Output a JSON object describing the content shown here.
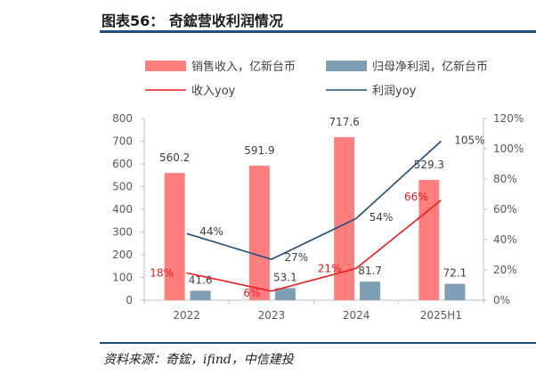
{
  "header": {
    "title": "图表56：  奇鋐营收利润情况"
  },
  "footer": {
    "source": "资料来源：奇鋐，ifind，中信建投"
  },
  "colors": {
    "revenue_bar": "#ff7f7f",
    "profit_bar": "#7f9fb5",
    "revenue_yoy": "#e81c1c",
    "profit_yoy": "#1f4e79",
    "rule": "#1f4e79"
  },
  "chart_data": {
    "type": "bar",
    "categories": [
      "2022",
      "2023",
      "2024",
      "2025H1"
    ],
    "series": [
      {
        "name": "销售收入，亿新台币",
        "kind": "bar",
        "axis": "left",
        "values": [
          560.2,
          591.9,
          717.6,
          529.3
        ],
        "labels": [
          "560.2",
          "591.9",
          "717.6",
          "529.3"
        ]
      },
      {
        "name": "归母净利润，亿新台币",
        "kind": "bar",
        "axis": "left",
        "values": [
          41.6,
          53.1,
          81.7,
          72.1
        ],
        "labels": [
          "41.6",
          "53.1",
          "81.7",
          "72.1"
        ]
      },
      {
        "name": "收入yoy",
        "kind": "line",
        "axis": "right",
        "values": [
          18,
          6,
          21,
          66
        ],
        "labels": [
          "18%",
          "6%",
          "21%",
          "66%"
        ]
      },
      {
        "name": "利润yoy",
        "kind": "line",
        "axis": "right",
        "values": [
          44,
          27,
          54,
          105
        ],
        "labels": [
          "44%",
          "27%",
          "54%",
          "105%"
        ]
      }
    ],
    "yleft": {
      "min": 0,
      "max": 800,
      "ticks": [
        "0",
        "100",
        "200",
        "300",
        "400",
        "500",
        "600",
        "700",
        "800"
      ]
    },
    "yright": {
      "min": 0,
      "max": 120,
      "ticks": [
        "0%",
        "20%",
        "40%",
        "60%",
        "80%",
        "100%",
        "120%"
      ]
    },
    "legend_position": "top",
    "grid": false
  }
}
